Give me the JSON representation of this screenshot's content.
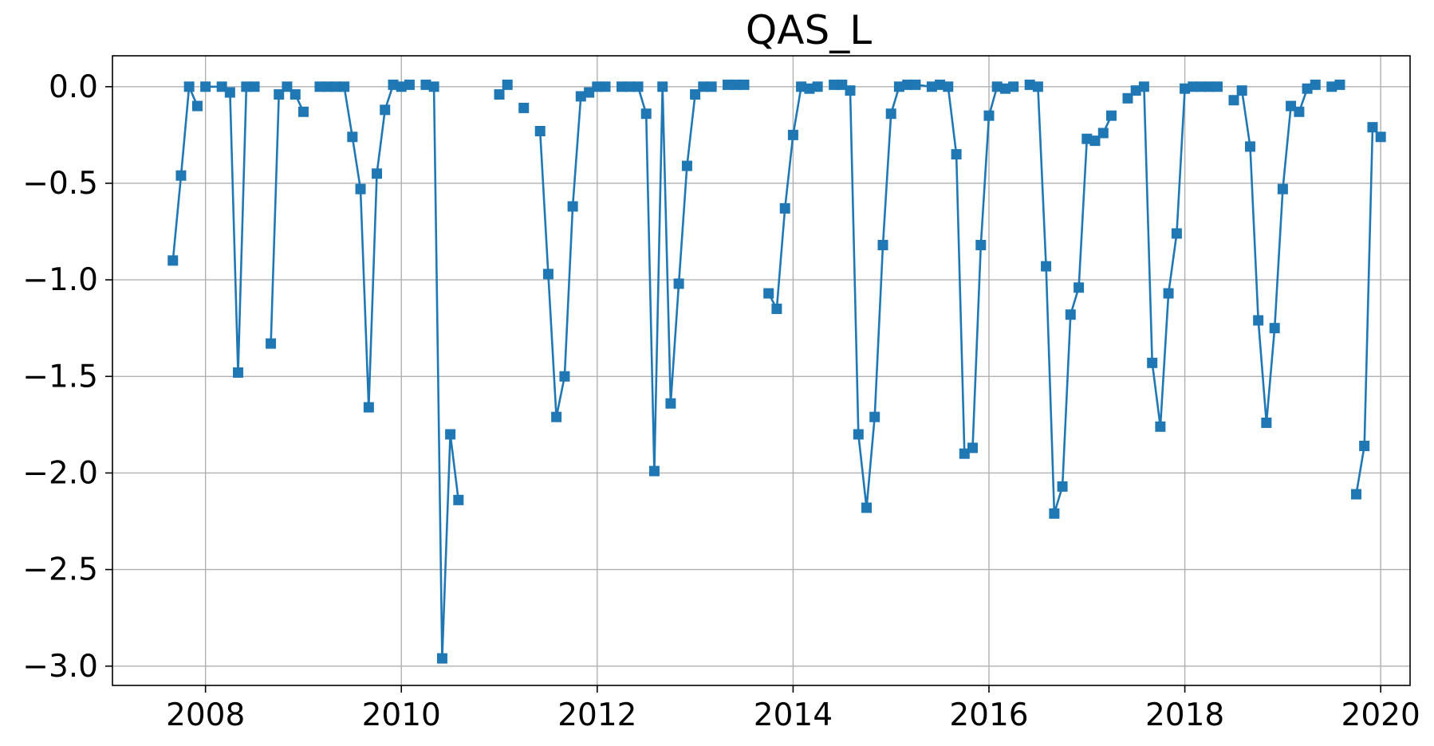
{
  "chart_data": {
    "type": "line",
    "title": "QAS_L",
    "xlabel": "",
    "ylabel": "",
    "x_axis": "date (year)",
    "xlim": [
      2007.05,
      2020.3
    ],
    "ylim": [
      -3.1,
      0.16
    ],
    "xticks": [
      2008,
      2010,
      2012,
      2014,
      2016,
      2018,
      2020
    ],
    "xtick_labels": [
      "2008",
      "2010",
      "2012",
      "2014",
      "2016",
      "2018",
      "2020"
    ],
    "yticks": [
      0.0,
      -0.5,
      -1.0,
      -1.5,
      -2.0,
      -2.5,
      -3.0
    ],
    "ytick_labels": [
      "0.0",
      "−0.5",
      "−1.0",
      "−1.5",
      "−2.0",
      "−2.5",
      "−3.0"
    ],
    "grid": true,
    "legend": false,
    "marker": "square",
    "color": "#1f77b4",
    "series": [
      {
        "points": [
          [
            2007.667,
            -0.9
          ],
          [
            2007.75,
            -0.46
          ],
          [
            2007.833,
            0.0
          ],
          [
            2007.917,
            -0.1
          ],
          [
            2008.0,
            0.0
          ],
          [
            2008.167,
            0.0
          ],
          [
            2008.25,
            -0.03
          ],
          [
            2008.333,
            -1.48
          ],
          [
            2008.417,
            0.0
          ],
          [
            2008.5,
            0.0
          ],
          [
            2008.667,
            -1.33
          ],
          [
            2008.75,
            -0.04
          ],
          [
            2008.833,
            0.0
          ],
          [
            2008.917,
            -0.04
          ],
          [
            2009.0,
            -0.13
          ],
          [
            2009.167,
            0.0
          ],
          [
            2009.25,
            0.0
          ],
          [
            2009.333,
            0.0
          ],
          [
            2009.417,
            0.0
          ],
          [
            2009.5,
            -0.26
          ],
          [
            2009.583,
            -0.53
          ],
          [
            2009.667,
            -1.66
          ],
          [
            2009.75,
            -0.45
          ],
          [
            2009.833,
            -0.12
          ],
          [
            2009.917,
            0.01
          ],
          [
            2010.0,
            0.0
          ],
          [
            2010.083,
            0.01
          ],
          [
            2010.25,
            0.01
          ],
          [
            2010.333,
            0.0
          ],
          [
            2010.417,
            -2.96
          ],
          [
            2010.5,
            -1.8
          ],
          [
            2010.583,
            -2.14
          ],
          [
            2011.0,
            -0.04
          ],
          [
            2011.083,
            0.01
          ],
          [
            2011.25,
            -0.11
          ],
          [
            2011.417,
            -0.23
          ],
          [
            2011.5,
            -0.97
          ],
          [
            2011.583,
            -1.71
          ],
          [
            2011.667,
            -1.5
          ],
          [
            2011.75,
            -0.62
          ],
          [
            2011.833,
            -0.05
          ],
          [
            2011.917,
            -0.03
          ],
          [
            2012.0,
            0.0
          ],
          [
            2012.083,
            0.0
          ],
          [
            2012.25,
            0.0
          ],
          [
            2012.333,
            0.0
          ],
          [
            2012.417,
            0.0
          ],
          [
            2012.5,
            -0.14
          ],
          [
            2012.583,
            -1.99
          ],
          [
            2012.667,
            0.0
          ],
          [
            2012.75,
            -1.64
          ],
          [
            2012.833,
            -1.02
          ],
          [
            2012.917,
            -0.41
          ],
          [
            2013.0,
            -0.04
          ],
          [
            2013.083,
            0.0
          ],
          [
            2013.167,
            0.0
          ],
          [
            2013.333,
            0.01
          ],
          [
            2013.417,
            0.01
          ],
          [
            2013.5,
            0.01
          ],
          [
            2013.75,
            -1.07
          ],
          [
            2013.833,
            -1.15
          ],
          [
            2013.917,
            -0.63
          ],
          [
            2014.0,
            -0.25
          ],
          [
            2014.083,
            0.0
          ],
          [
            2014.167,
            -0.01
          ],
          [
            2014.25,
            0.0
          ],
          [
            2014.417,
            0.01
          ],
          [
            2014.5,
            0.01
          ],
          [
            2014.583,
            -0.02
          ],
          [
            2014.667,
            -1.8
          ],
          [
            2014.75,
            -2.18
          ],
          [
            2014.833,
            -1.71
          ],
          [
            2014.917,
            -0.82
          ],
          [
            2015.0,
            -0.14
          ],
          [
            2015.083,
            0.0
          ],
          [
            2015.167,
            0.01
          ],
          [
            2015.25,
            0.01
          ],
          [
            2015.417,
            0.0
          ],
          [
            2015.5,
            0.01
          ],
          [
            2015.583,
            0.0
          ],
          [
            2015.667,
            -0.35
          ],
          [
            2015.75,
            -1.9
          ],
          [
            2015.833,
            -1.87
          ],
          [
            2015.917,
            -0.82
          ],
          [
            2016.0,
            -0.15
          ],
          [
            2016.083,
            0.0
          ],
          [
            2016.167,
            -0.01
          ],
          [
            2016.25,
            0.0
          ],
          [
            2016.417,
            0.01
          ],
          [
            2016.5,
            0.0
          ],
          [
            2016.583,
            -0.93
          ],
          [
            2016.667,
            -2.21
          ],
          [
            2016.75,
            -2.07
          ],
          [
            2016.833,
            -1.18
          ],
          [
            2016.917,
            -1.04
          ],
          [
            2017.0,
            -0.27
          ],
          [
            2017.083,
            -0.28
          ],
          [
            2017.167,
            -0.24
          ],
          [
            2017.25,
            -0.15
          ],
          [
            2017.417,
            -0.06
          ],
          [
            2017.5,
            -0.02
          ],
          [
            2017.583,
            0.0
          ],
          [
            2017.667,
            -1.43
          ],
          [
            2017.75,
            -1.76
          ],
          [
            2017.833,
            -1.07
          ],
          [
            2017.917,
            -0.76
          ],
          [
            2018.0,
            -0.01
          ],
          [
            2018.083,
            0.0
          ],
          [
            2018.167,
            0.0
          ],
          [
            2018.25,
            0.0
          ],
          [
            2018.333,
            0.0
          ],
          [
            2018.5,
            -0.07
          ],
          [
            2018.583,
            -0.02
          ],
          [
            2018.667,
            -0.31
          ],
          [
            2018.75,
            -1.21
          ],
          [
            2018.833,
            -1.74
          ],
          [
            2018.917,
            -1.25
          ],
          [
            2019.0,
            -0.53
          ],
          [
            2019.083,
            -0.1
          ],
          [
            2019.167,
            -0.13
          ],
          [
            2019.25,
            -0.01
          ],
          [
            2019.333,
            0.01
          ],
          [
            2019.5,
            0.0
          ],
          [
            2019.583,
            0.01
          ],
          [
            2019.75,
            -2.11
          ],
          [
            2019.833,
            -1.86
          ],
          [
            2019.917,
            -0.21
          ],
          [
            2020.0,
            -0.26
          ]
        ],
        "segment_breaks_after_x": [
          2007.917,
          2008.5,
          2008.583,
          2009.0,
          2010.083,
          2010.583,
          2011.083,
          2011.25,
          2012.083,
          2013.167,
          2013.5,
          2014.25,
          2015.083,
          2015.417,
          2016.25,
          2017.25,
          2018.333,
          2019.333,
          2019.583
        ]
      }
    ]
  }
}
